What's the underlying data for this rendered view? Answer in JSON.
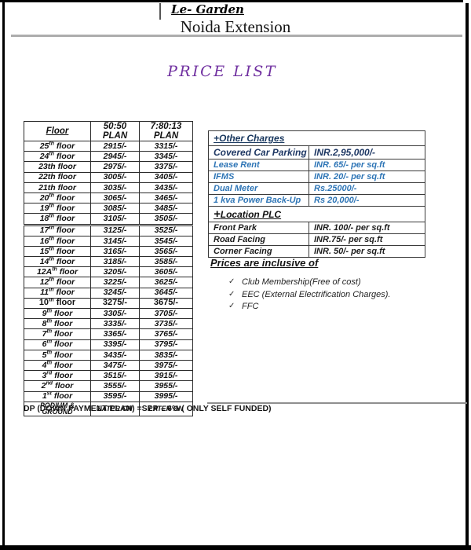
{
  "document": {
    "brand": "Le- Garden",
    "project": "Noida Extension",
    "title": "PRICE LIST",
    "footer_note": "DP (DOWN PAYMENT PLAN) =SPP – 6% ( ONLY SELF FUNDED)"
  },
  "colors": {
    "title_purple": "#7030a0",
    "other_charges_header_navy": "#17365d",
    "other_charges_emphasis_navy": "#1f3864",
    "other_charges_blue": "#2e75b6",
    "frame_black": "#000000",
    "rule_gray": "#adadad"
  },
  "floor_table": {
    "headers": [
      "Floor",
      "50:50 PLAN",
      "7:80:13 PLAN"
    ],
    "floor_word": " floor",
    "rows": [
      {
        "floor": "25",
        "ord": "th",
        "sup": true,
        "plan_5050": "2915/-",
        "plan_78013": "3315/-"
      },
      {
        "floor": "24",
        "ord": "th",
        "sup": true,
        "plan_5050": "2945/-",
        "plan_78013": "3345/-"
      },
      {
        "floor": "23",
        "ord": "th",
        "sup": false,
        "plan_5050": "2975/-",
        "plan_78013": "3375/-"
      },
      {
        "floor": "22",
        "ord": "th",
        "sup": false,
        "plan_5050": "3005/-",
        "plan_78013": "3405/-"
      },
      {
        "floor": "21",
        "ord": "th",
        "sup": false,
        "plan_5050": "3035/-",
        "plan_78013": "3435/-"
      },
      {
        "floor": "20",
        "ord": "th",
        "sup": true,
        "plan_5050": "3065/-",
        "plan_78013": "3465/-"
      },
      {
        "floor": "19",
        "ord": "th",
        "sup": true,
        "plan_5050": "3085/-",
        "plan_78013": "3485/-"
      },
      {
        "floor": "18",
        "ord": "th",
        "sup": true,
        "plan_5050": "3105/-",
        "plan_78013": "3505/-",
        "thick_separator_below": true
      },
      {
        "floor": "17",
        "ord": "th",
        "sup": true,
        "plan_5050": "3125/-",
        "plan_78013": "3525/-"
      },
      {
        "floor": "16",
        "ord": "th",
        "sup": true,
        "plan_5050": "3145/-",
        "plan_78013": "3545/-"
      },
      {
        "floor": "15",
        "ord": "th",
        "sup": true,
        "plan_5050": "3165/-",
        "plan_78013": "3565/-"
      },
      {
        "floor": "14",
        "ord": "th",
        "sup": true,
        "plan_5050": "3185/-",
        "plan_78013": "3585/-"
      },
      {
        "floor": "12A",
        "ord": "th",
        "sup": true,
        "plan_5050": "3205/-",
        "plan_78013": "3605/-"
      },
      {
        "floor": "12",
        "ord": "th",
        "sup": true,
        "plan_5050": "3225/-",
        "plan_78013": "3625/-"
      },
      {
        "floor": "11",
        "ord": "th",
        "sup": true,
        "plan_5050": "3245/-",
        "plan_78013": "3645/-"
      },
      {
        "floor": "10",
        "ord": "th",
        "sup": true,
        "plan_5050": "3275/-",
        "plan_78013": "3675/-",
        "highlight": true
      },
      {
        "floor": "9",
        "ord": "th",
        "sup": true,
        "plan_5050": "3305/-",
        "plan_78013": "3705/-"
      },
      {
        "floor": "8",
        "ord": "th",
        "sup": true,
        "plan_5050": "3335/-",
        "plan_78013": "3735/-"
      },
      {
        "floor": "7",
        "ord": "th",
        "sup": true,
        "plan_5050": "3365/-",
        "plan_78013": "3765/-"
      },
      {
        "floor": "6",
        "ord": "th",
        "sup": true,
        "plan_5050": "3395/-",
        "plan_78013": "3795/-"
      },
      {
        "floor": "5",
        "ord": "th",
        "sup": true,
        "plan_5050": "3435/-",
        "plan_78013": "3835/-"
      },
      {
        "floor": "4",
        "ord": "th",
        "sup": true,
        "plan_5050": "3475/-",
        "plan_78013": "3975/-"
      },
      {
        "floor": "3",
        "ord": "rd",
        "sup": true,
        "plan_5050": "3515/-",
        "plan_78013": "3915/-"
      },
      {
        "floor": "2",
        "ord": "nd",
        "sup": true,
        "plan_5050": "3555/-",
        "plan_78013": "3955/-"
      },
      {
        "floor": "1",
        "ord": "st",
        "sup": true,
        "plan_5050": "3595/-",
        "plan_78013": "3995/-"
      },
      {
        "label": "PODIUM & GROUND",
        "plan_5050": "LATER ON",
        "plan_78013": "LATER ON",
        "footer": true
      }
    ]
  },
  "other_charges": {
    "title": "+Other Charges",
    "rows": [
      {
        "label": "Covered Car Parking",
        "value": "INR.2,95,000/-",
        "emphasis": true
      },
      {
        "label": "Lease Rent",
        "value": "INR. 65/- per sq.ft"
      },
      {
        "label": "IFMS",
        "value": "INR. 20/- per sq.ft"
      },
      {
        "label": "Dual Meter",
        "value": "Rs.25000/-"
      },
      {
        "label": "1 kva Power Back-Up",
        "value": "Rs 20,000/-"
      }
    ]
  },
  "location_plc": {
    "title": "+Location PLC",
    "rows": [
      {
        "label": "Front Park",
        "value": "INR. 100/- per sq.ft"
      },
      {
        "label": "Road Facing",
        "value": "INR.75/- per sq.ft"
      },
      {
        "label": "Corner Facing",
        "value": "INR. 50/- per sq.ft"
      }
    ]
  },
  "inclusions": {
    "title": "Prices are inclusive of",
    "check_icon": "✓",
    "items": [
      "Club Membership(Free of cost)",
      "EEC (External Electrification Charges).",
      "FFC"
    ]
  }
}
